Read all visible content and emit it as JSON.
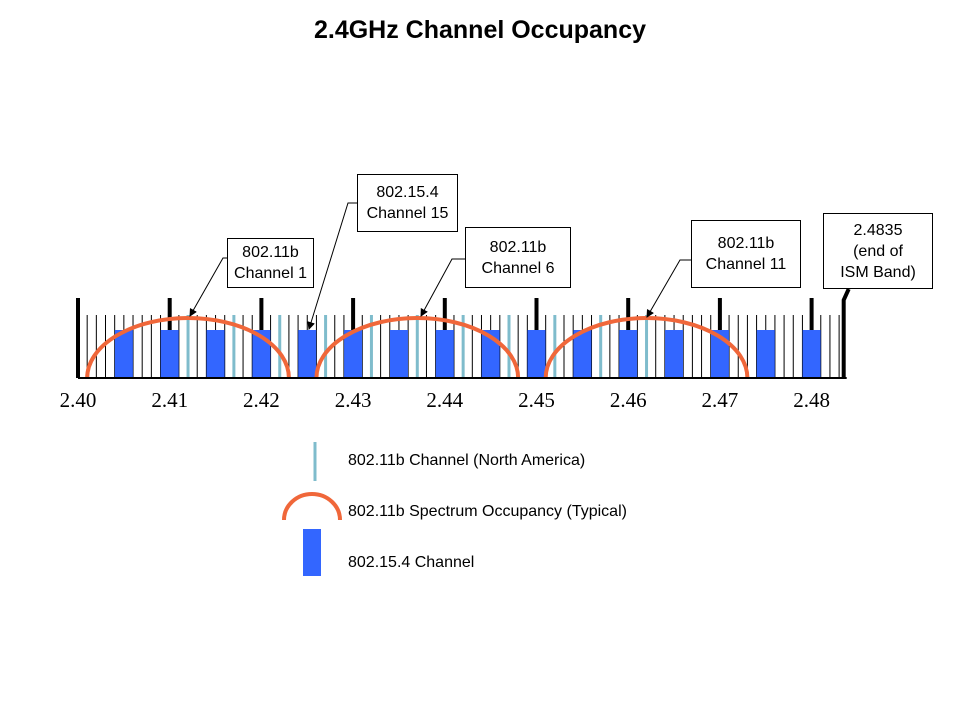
{
  "title": "2.4GHz Channel Occupancy",
  "chart_data": {
    "type": "diagram",
    "x_unit": "GHz",
    "x_range": [
      2.4,
      2.4835
    ],
    "tick_labels": [
      "2.40",
      "2.41",
      "2.42",
      "2.43",
      "2.44",
      "2.45",
      "2.46",
      "2.47",
      "2.48"
    ],
    "minor_tick_step_mhz": 1,
    "wifi_channels_na_mhz": [
      2412,
      2417,
      2422,
      2427,
      2432,
      2437,
      2442,
      2447,
      2452,
      2457,
      2462
    ],
    "wifi_occupancy_centers_mhz": [
      2412,
      2437,
      2462
    ],
    "wifi_occupancy_halfwidth_mhz": 11,
    "zigbee_channels_mhz": [
      2405,
      2410,
      2415,
      2420,
      2425,
      2430,
      2435,
      2440,
      2445,
      2450,
      2455,
      2460,
      2465,
      2470,
      2475,
      2480
    ],
    "ism_band_end_mhz": 2483.5
  },
  "callouts": [
    {
      "id": "ch1",
      "lines": [
        "802.11b",
        "Channel 1"
      ],
      "target_mhz": 2412
    },
    {
      "id": "z15",
      "lines": [
        "802.15.4",
        "Channel 15"
      ],
      "target_mhz": 2425
    },
    {
      "id": "ch6",
      "lines": [
        "802.11b",
        "Channel 6"
      ],
      "target_mhz": 2437
    },
    {
      "id": "ch11",
      "lines": [
        "802.11b",
        "Channel 11"
      ],
      "target_mhz": 2462
    },
    {
      "id": "ism",
      "lines": [
        "2.4835",
        "(end of",
        "ISM Band)"
      ],
      "target_mhz": 2483.5
    }
  ],
  "legend": {
    "wifi_channel": "802.11b Channel (North America)",
    "wifi_occupancy": "802.11b Spectrum Occupancy (Typical)",
    "zigbee_channel": "802.15.4 Channel"
  },
  "colors": {
    "wifi_line": "#7fbccc",
    "arc": "#f0673a",
    "zigbee": "#3366ff",
    "ink": "#000000"
  }
}
